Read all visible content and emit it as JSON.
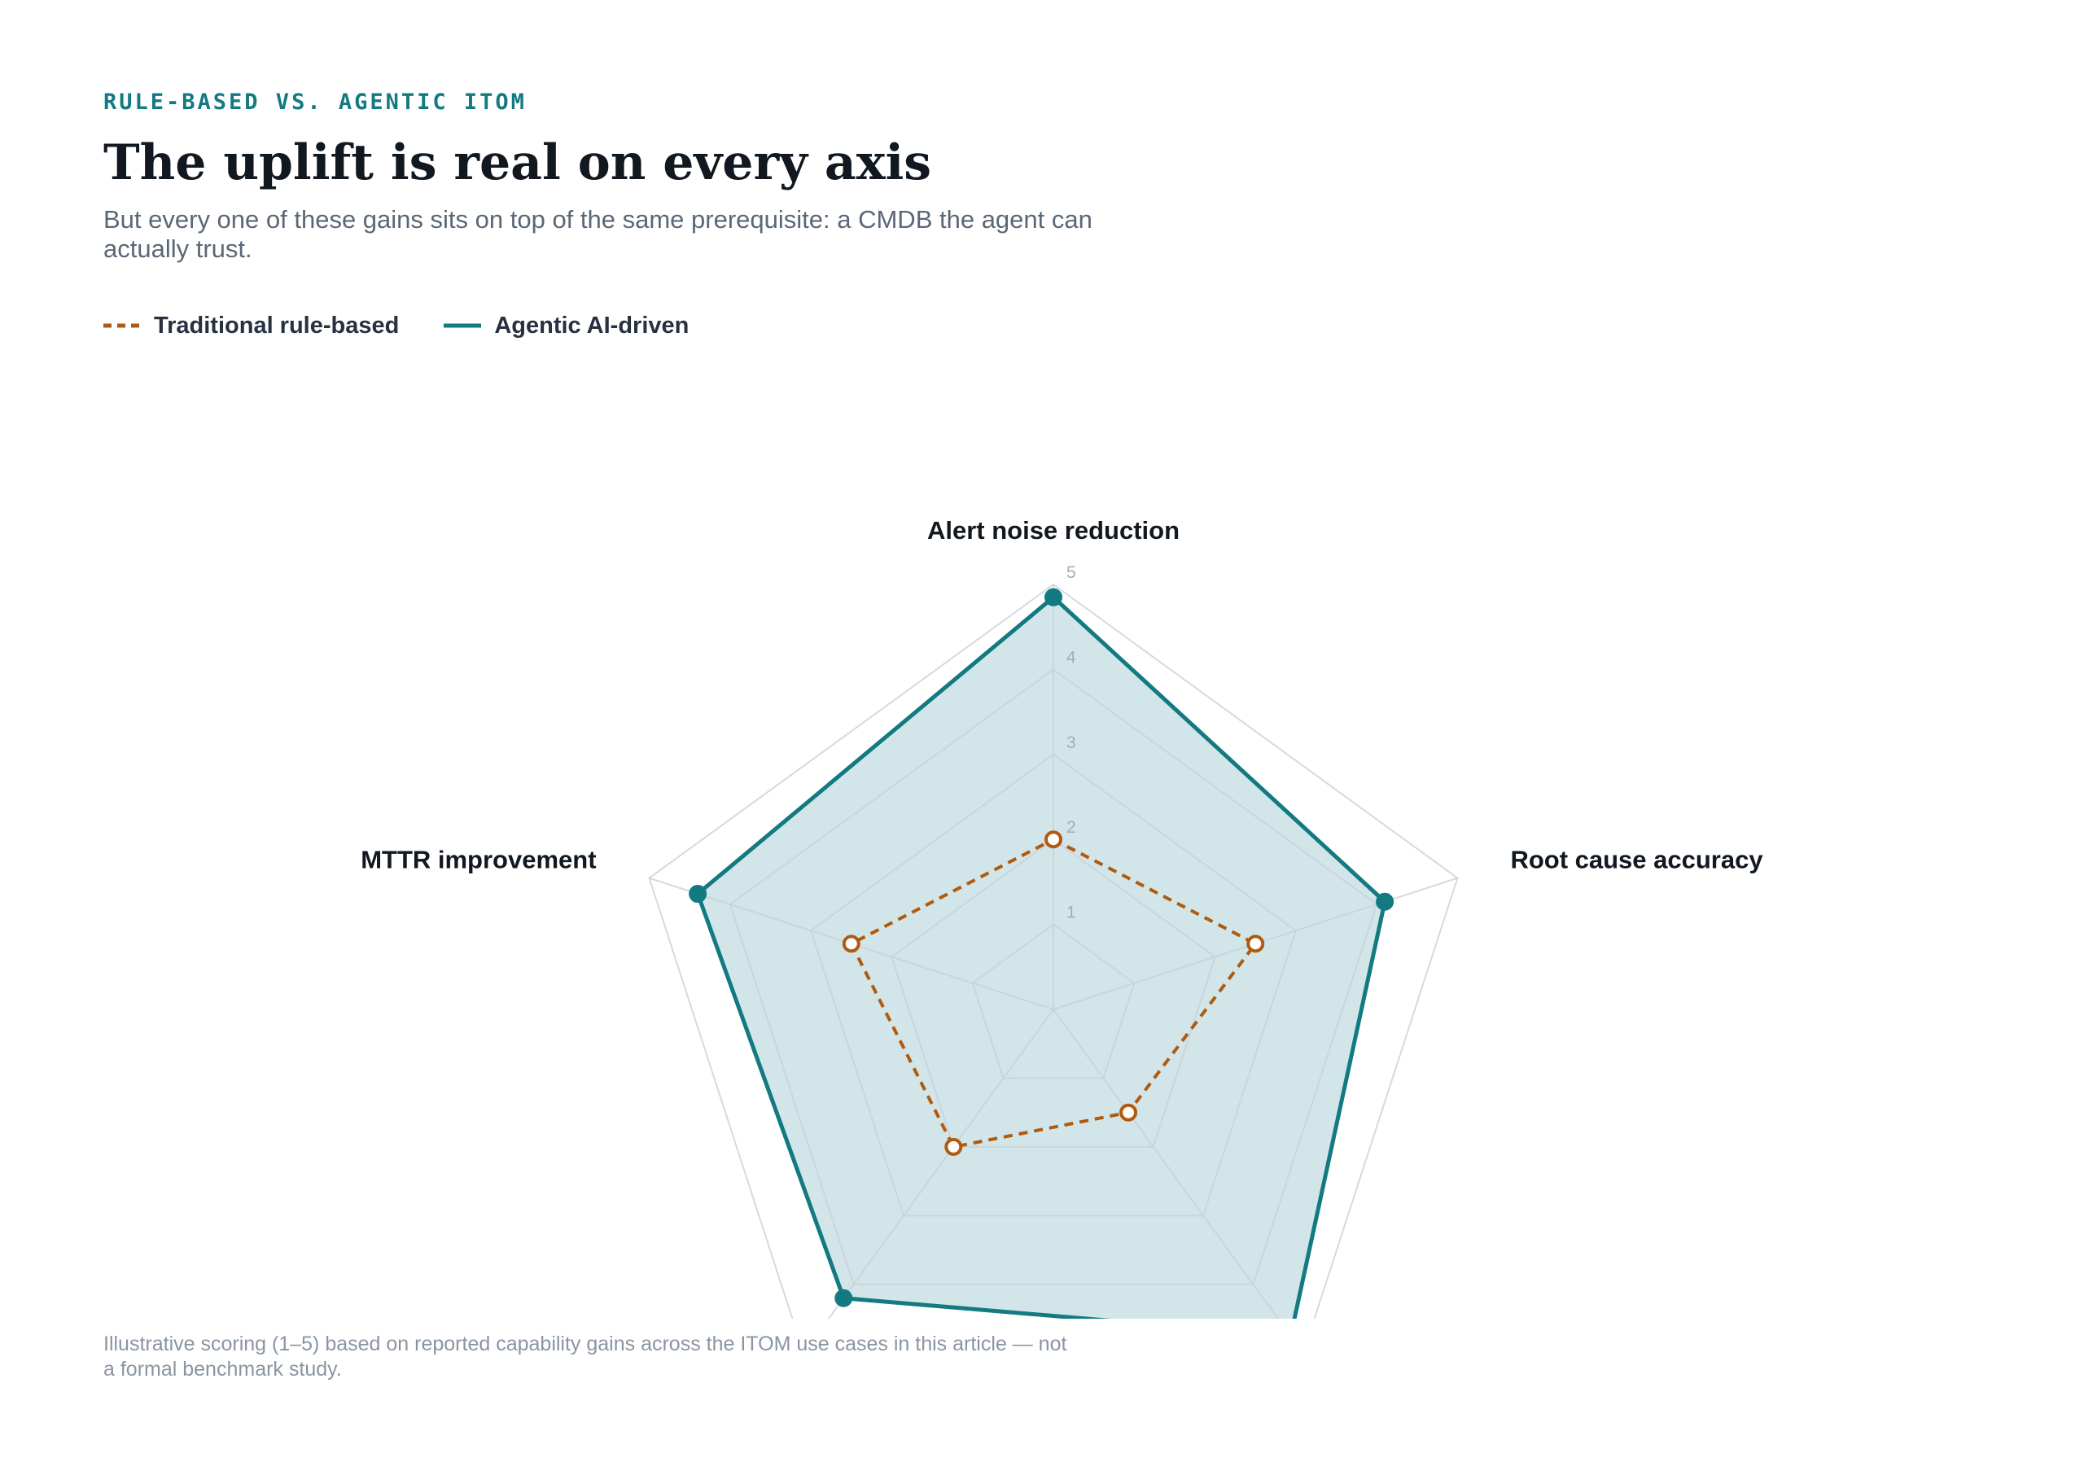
{
  "header": {
    "eyebrow": "RULE-BASED VS. AGENTIC ITOM",
    "title": "The uplift is real on every axis",
    "subtitle": "But every one of these gains sits on top of the same prerequisite: a CMDB the agent can actually trust."
  },
  "legend": {
    "items": [
      {
        "label": "Traditional rule-based",
        "color": "#b05a10",
        "style": "dashed"
      },
      {
        "label": "Agentic AI-driven",
        "color": "#137a82",
        "style": "solid"
      }
    ]
  },
  "chart_data": {
    "type": "radar",
    "axes": [
      "Alert noise reduction",
      "Root cause accuracy",
      "",
      "",
      "MTTR improvement"
    ],
    "ticks": [
      "1",
      "2",
      "3",
      "4",
      "5"
    ],
    "range": [
      0,
      5
    ],
    "series": [
      {
        "name": "Traditional rule-based",
        "values": [
          2,
          2.5,
          1.5,
          2,
          2.5
        ],
        "color": "#b05a10",
        "style": "dashed"
      },
      {
        "name": "Agentic AI-driven",
        "values": [
          4.85,
          4.1,
          4.75,
          4.2,
          4.4
        ],
        "color": "#137a82",
        "fill": "#d0e5e8",
        "style": "solid"
      }
    ],
    "grid": true,
    "legend_position": "top-left"
  },
  "footnote": "Illustrative scoring (1–5) based on reported capability gains across the ITOM use cases in this article — not a formal benchmark study."
}
